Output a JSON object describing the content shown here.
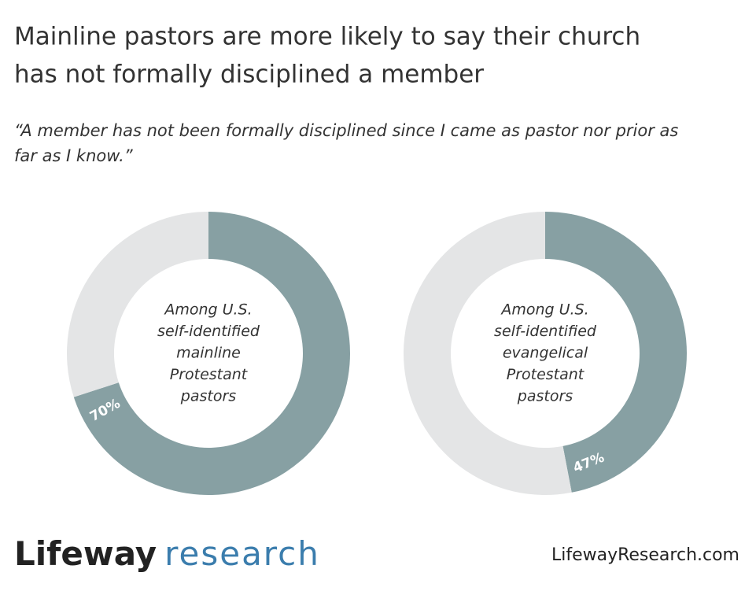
{
  "header": {
    "title_lines": [
      "Mainline pastors are more likely to say their church",
      "has not formally disciplined a member"
    ],
    "subtitle_lines": [
      "“A member has not been formally disciplined since I came as pastor nor prior as",
      "far as I know.”"
    ]
  },
  "chart_data": [
    {
      "type": "donut",
      "center_label": [
        "Among U.S.",
        "self-identified",
        "mainline",
        "Protestant",
        "pastors"
      ],
      "values": [
        70,
        30
      ],
      "value_labels": [
        "70%",
        null
      ],
      "colors": [
        "#87a0a3",
        "#e4e5e6"
      ]
    },
    {
      "type": "donut",
      "center_label": [
        "Among U.S.",
        "self-identified",
        "evangelical",
        "Protestant",
        "pastors"
      ],
      "values": [
        47,
        53
      ],
      "value_labels": [
        "47%",
        null
      ],
      "colors": [
        "#87a0a3",
        "#e4e5e6"
      ]
    }
  ],
  "footer": {
    "logo_main": "Lifeway",
    "logo_accent": "research",
    "url": "LifewayResearch.com"
  }
}
